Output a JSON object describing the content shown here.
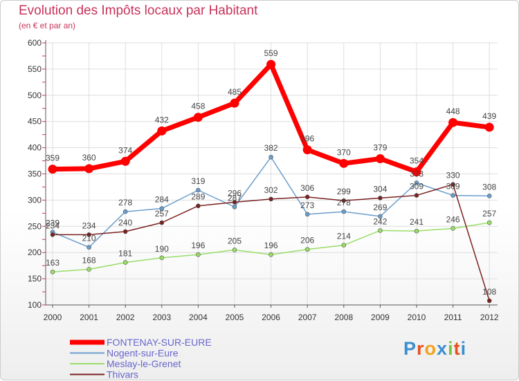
{
  "chart_data": {
    "type": "line",
    "title": "Evolution des Impôts locaux par Habitant",
    "subtitle": "(en € et par an)",
    "x": [
      "2000",
      "2001",
      "2002",
      "2003",
      "2004",
      "2005",
      "2006",
      "2007",
      "2008",
      "2009",
      "2010",
      "2011",
      "2012"
    ],
    "ylim": [
      100,
      600
    ],
    "yticks": [
      100,
      150,
      200,
      250,
      300,
      350,
      400,
      450,
      500,
      550,
      600
    ],
    "grid": true,
    "legend_position": "bottom-left",
    "series": [
      {
        "name": "FONTENAY-SUR-EURE",
        "color": "#ff0000",
        "values": [
          359,
          360,
          374,
          432,
          458,
          485,
          559,
          396,
          370,
          379,
          354,
          448,
          439
        ]
      },
      {
        "name": "Nogent-sur-Eure",
        "color": "#6a9dcc",
        "values": [
          239,
          210,
          278,
          284,
          319,
          287,
          382,
          273,
          278,
          269,
          333,
          309,
          308
        ]
      },
      {
        "name": "Meslay-le-Grenet",
        "color": "#99dd66",
        "values": [
          163,
          168,
          181,
          190,
          196,
          205,
          196,
          206,
          214,
          242,
          241,
          246,
          257
        ]
      },
      {
        "name": "Thivars",
        "color": "#7a2020",
        "values": [
          234,
          234,
          240,
          257,
          289,
          296,
          302,
          306,
          299,
          304,
          309,
          330,
          108
        ]
      }
    ]
  },
  "logo": {
    "text": "Proxiti"
  }
}
